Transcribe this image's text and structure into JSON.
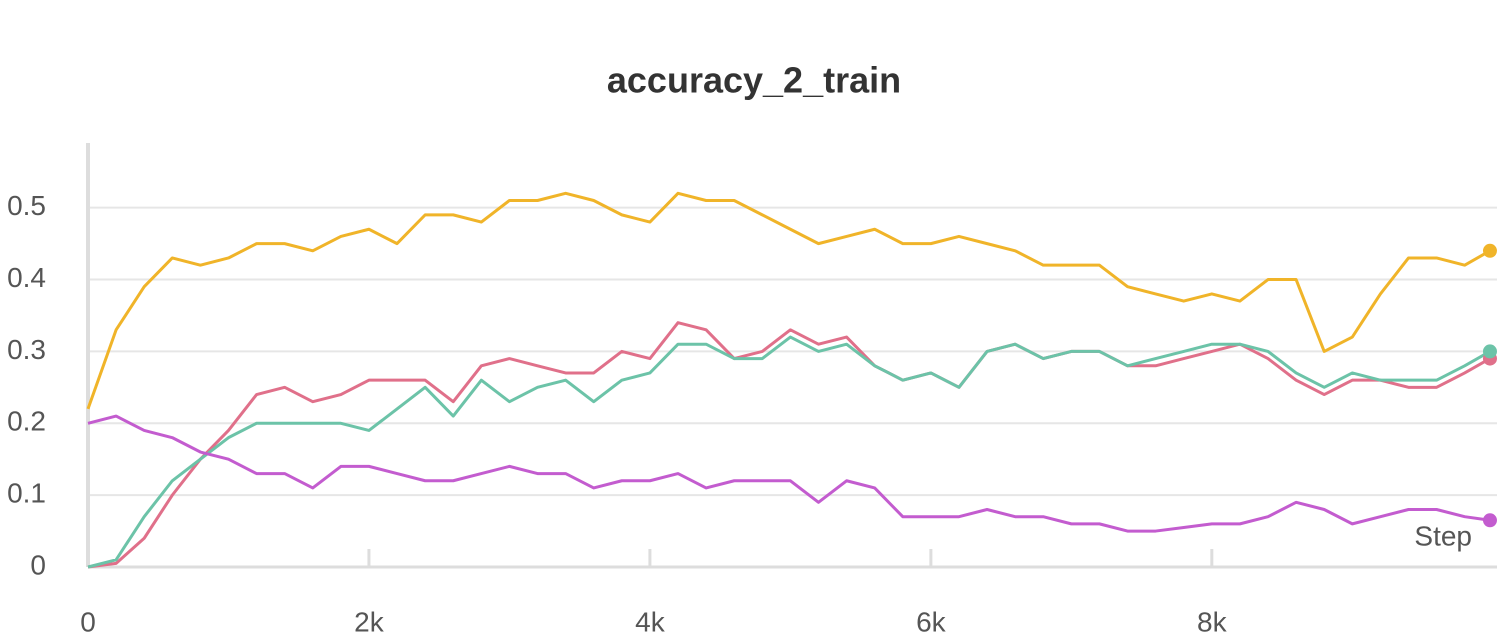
{
  "chart_data": {
    "type": "line",
    "title": "accuracy_2_train",
    "x_label": "Step",
    "x": [
      0,
      200,
      400,
      600,
      800,
      1000,
      1200,
      1400,
      1600,
      1800,
      2000,
      2200,
      2400,
      2600,
      2800,
      3000,
      3200,
      3400,
      3600,
      3800,
      4000,
      4200,
      4400,
      4600,
      4800,
      5000,
      5200,
      5400,
      5600,
      5800,
      6000,
      6200,
      6400,
      6600,
      6800,
      7000,
      7200,
      7400,
      7600,
      7800,
      8000,
      8200,
      8400,
      8600,
      8800,
      9000,
      9200,
      9400,
      9600,
      9800,
      9980
    ],
    "series": [
      {
        "color": "#f0b429",
        "values": [
          0.22,
          0.33,
          0.39,
          0.43,
          0.42,
          0.43,
          0.45,
          0.45,
          0.44,
          0.46,
          0.47,
          0.45,
          0.49,
          0.49,
          0.48,
          0.51,
          0.51,
          0.52,
          0.51,
          0.49,
          0.48,
          0.52,
          0.51,
          0.51,
          0.49,
          0.47,
          0.45,
          0.46,
          0.47,
          0.45,
          0.45,
          0.46,
          0.45,
          0.44,
          0.42,
          0.42,
          0.42,
          0.39,
          0.38,
          0.37,
          0.38,
          0.37,
          0.4,
          0.4,
          0.3,
          0.32,
          0.38,
          0.43,
          0.43,
          0.42,
          0.44
        ]
      },
      {
        "color": "#e0708a",
        "values": [
          0,
          0.005,
          0.04,
          0.1,
          0.15,
          0.19,
          0.24,
          0.25,
          0.23,
          0.24,
          0.26,
          0.26,
          0.26,
          0.23,
          0.28,
          0.29,
          0.28,
          0.27,
          0.27,
          0.3,
          0.29,
          0.34,
          0.33,
          0.29,
          0.3,
          0.33,
          0.31,
          0.32,
          0.28,
          0.26,
          0.27,
          0.25,
          0.3,
          0.31,
          0.29,
          0.3,
          0.3,
          0.28,
          0.28,
          0.29,
          0.3,
          0.31,
          0.29,
          0.26,
          0.24,
          0.26,
          0.26,
          0.25,
          0.25,
          0.27,
          0.29
        ]
      },
      {
        "color": "#6cc3a8",
        "values": [
          0,
          0.01,
          0.07,
          0.12,
          0.15,
          0.18,
          0.2,
          0.2,
          0.2,
          0.2,
          0.19,
          0.22,
          0.25,
          0.21,
          0.26,
          0.23,
          0.25,
          0.26,
          0.23,
          0.26,
          0.27,
          0.31,
          0.31,
          0.29,
          0.29,
          0.32,
          0.3,
          0.31,
          0.28,
          0.26,
          0.27,
          0.25,
          0.3,
          0.31,
          0.29,
          0.3,
          0.3,
          0.28,
          0.29,
          0.3,
          0.31,
          0.31,
          0.3,
          0.27,
          0.25,
          0.27,
          0.26,
          0.26,
          0.26,
          0.28,
          0.3
        ]
      },
      {
        "color": "#c35ccf",
        "values": [
          0.2,
          0.21,
          0.19,
          0.18,
          0.16,
          0.15,
          0.13,
          0.13,
          0.11,
          0.14,
          0.14,
          0.13,
          0.12,
          0.12,
          0.13,
          0.14,
          0.13,
          0.13,
          0.11,
          0.12,
          0.12,
          0.13,
          0.11,
          0.12,
          0.12,
          0.12,
          0.09,
          0.12,
          0.11,
          0.07,
          0.07,
          0.07,
          0.08,
          0.07,
          0.07,
          0.06,
          0.06,
          0.05,
          0.05,
          0.055,
          0.06,
          0.06,
          0.07,
          0.09,
          0.08,
          0.06,
          0.07,
          0.08,
          0.08,
          0.07,
          0.065
        ]
      }
    ],
    "xlim": [
      0,
      10030
    ],
    "ylim": [
      0,
      0.59
    ],
    "xticks": [
      0,
      {
        "value": 2000,
        "label": "2k"
      },
      {
        "value": 4000,
        "label": "4k"
      },
      {
        "value": 6000,
        "label": "6k"
      },
      {
        "value": 8000,
        "label": "8k"
      }
    ],
    "yticks": [
      0,
      0.1,
      0.2,
      0.3,
      0.4,
      0.5
    ],
    "grid": true
  }
}
